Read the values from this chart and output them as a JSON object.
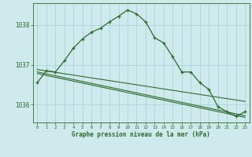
{
  "background_color": "#ceeaed",
  "grid_color": "#aad4d8",
  "line_color": "#2d6a2d",
  "xlabel": "Graphe pression niveau de la mer (hPa)",
  "xlim": [
    -0.5,
    23.5
  ],
  "ylim": [
    1035.55,
    1038.55
  ],
  "yticks": [
    1036,
    1037,
    1038
  ],
  "xticks": [
    0,
    1,
    2,
    3,
    4,
    5,
    6,
    7,
    8,
    9,
    10,
    11,
    12,
    13,
    14,
    15,
    16,
    17,
    18,
    19,
    20,
    21,
    22,
    23
  ],
  "main_series": [
    [
      0,
      1036.55
    ],
    [
      1,
      1036.85
    ],
    [
      2,
      1036.82
    ],
    [
      3,
      1037.1
    ],
    [
      4,
      1037.42
    ],
    [
      5,
      1037.65
    ],
    [
      6,
      1037.82
    ],
    [
      7,
      1037.92
    ],
    [
      8,
      1038.08
    ],
    [
      9,
      1038.22
    ],
    [
      10,
      1038.38
    ],
    [
      11,
      1038.28
    ],
    [
      12,
      1038.08
    ],
    [
      13,
      1037.68
    ],
    [
      14,
      1037.55
    ],
    [
      15,
      1037.2
    ],
    [
      16,
      1036.82
    ],
    [
      17,
      1036.82
    ],
    [
      18,
      1036.55
    ],
    [
      19,
      1036.38
    ],
    [
      20,
      1035.95
    ],
    [
      21,
      1035.82
    ],
    [
      22,
      1035.7
    ],
    [
      23,
      1035.82
    ]
  ],
  "trend_lines": [
    [
      [
        0,
        1036.82
      ],
      [
        23,
        1035.72
      ]
    ],
    [
      [
        0,
        1036.88
      ],
      [
        23,
        1036.08
      ]
    ],
    [
      [
        0,
        1036.78
      ],
      [
        23,
        1035.68
      ]
    ]
  ]
}
